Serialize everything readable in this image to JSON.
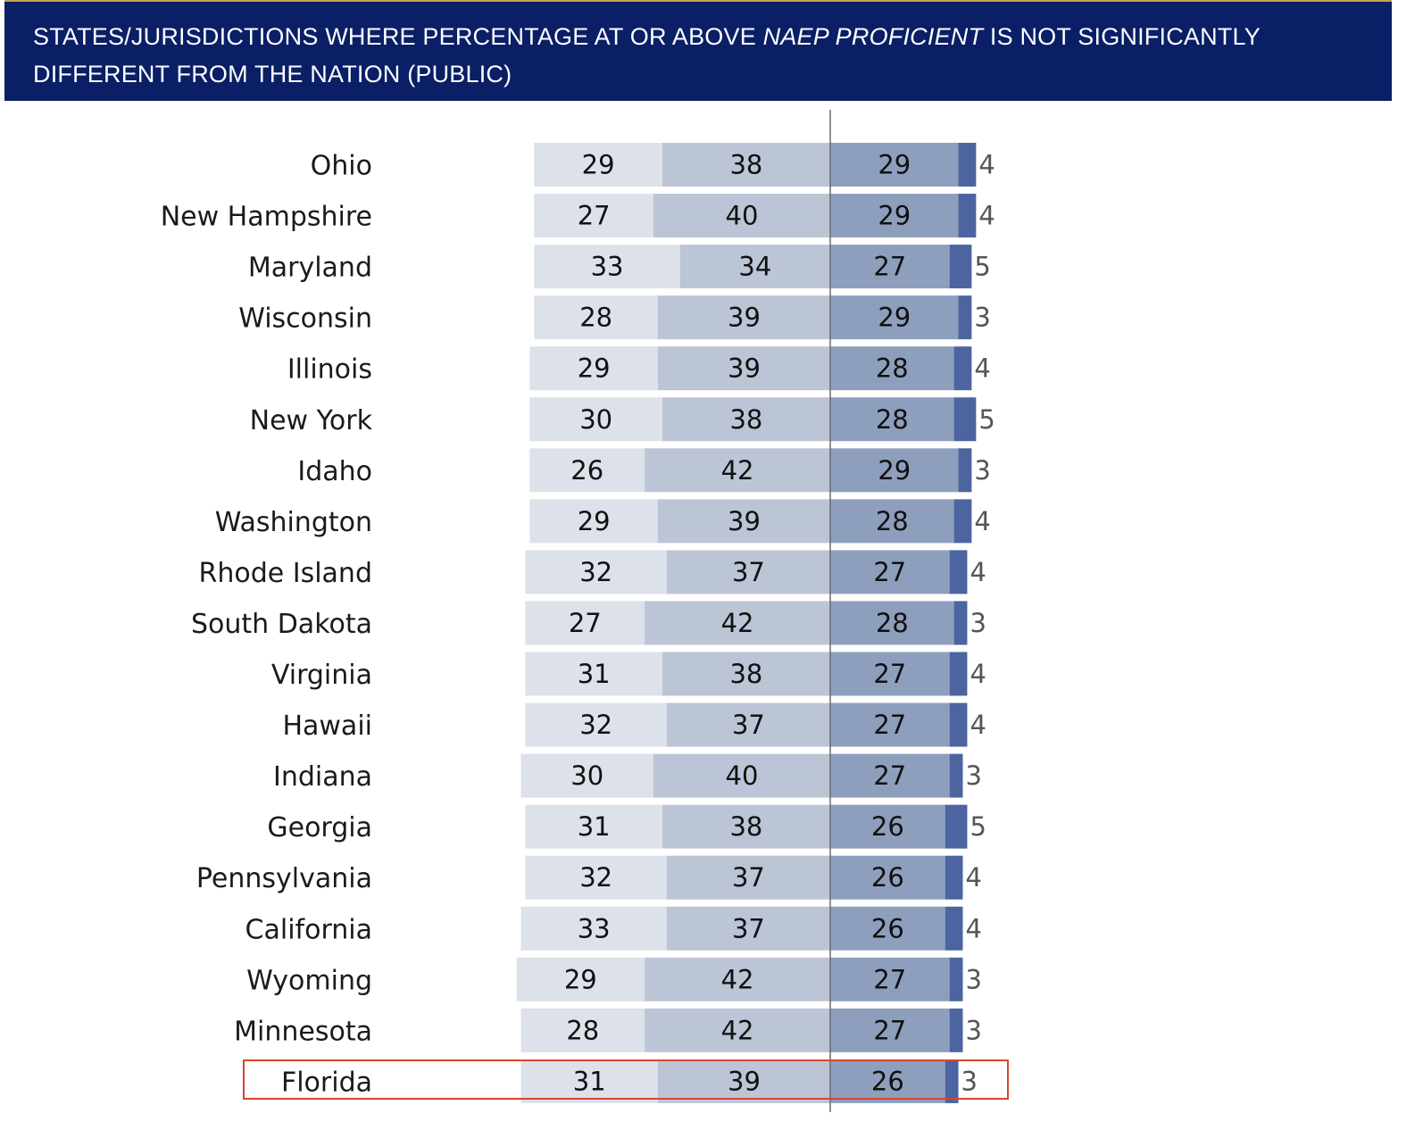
{
  "header": {
    "title_part1": "STATES/JURISDICTIONS WHERE PERCENTAGE AT OR ABOVE ",
    "title_italic": "NAEP PROFICIENT",
    "title_part2": " IS NOT SIGNIFICANTLY DIFFERENT FROM THE NATION (PUBLIC)"
  },
  "colors": {
    "below_basic": "#dde1ea",
    "basic": "#bcc5d6",
    "proficient": "#8e9fbd",
    "advanced": "#4c64a0",
    "header_bg": "#0a1f66",
    "highlight": "#d9442f"
  },
  "highlighted_state": "Florida",
  "chart_data": {
    "type": "bar",
    "orientation": "horizontal",
    "stacked": true,
    "categories": [
      "Ohio",
      "New Hampshire",
      "Maryland",
      "Wisconsin",
      "Illinois",
      "New York",
      "Idaho",
      "Washington",
      "Rhode Island",
      "South Dakota",
      "Virginia",
      "Hawaii",
      "Indiana",
      "Georgia",
      "Pennsylvania",
      "California",
      "Wyoming",
      "Minnesota",
      "Florida"
    ],
    "series": [
      {
        "values": [
          29,
          27,
          33,
          28,
          29,
          30,
          26,
          29,
          32,
          27,
          31,
          32,
          30,
          31,
          32,
          33,
          29,
          28,
          31
        ]
      },
      {
        "values": [
          38,
          40,
          34,
          39,
          39,
          38,
          42,
          39,
          37,
          42,
          38,
          37,
          40,
          38,
          37,
          37,
          42,
          42,
          39
        ]
      },
      {
        "values": [
          29,
          29,
          27,
          29,
          28,
          28,
          29,
          28,
          27,
          28,
          27,
          27,
          27,
          26,
          26,
          26,
          27,
          27,
          26
        ]
      },
      {
        "values": [
          4,
          4,
          5,
          3,
          4,
          5,
          3,
          4,
          4,
          3,
          4,
          4,
          3,
          5,
          4,
          4,
          3,
          3,
          3
        ]
      }
    ],
    "baseline": "Proficient",
    "legend": "none"
  }
}
